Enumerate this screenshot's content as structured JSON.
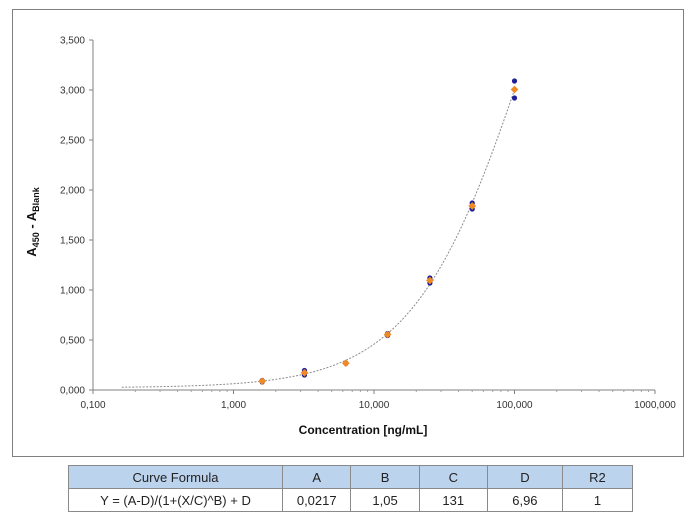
{
  "chart_data": {
    "type": "scatter",
    "xlabel": "Concentration [ng/mL]",
    "ylabel": {
      "main": "A",
      "sub1": "450",
      "mid": " - A",
      "sub2": "Blank"
    },
    "x_scale": "log",
    "xlim": [
      0.1,
      1000
    ],
    "ylim": [
      0,
      3.5
    ],
    "x_ticks": [
      {
        "value": 0.1,
        "label": "0,100"
      },
      {
        "value": 1,
        "label": "1,000"
      },
      {
        "value": 10,
        "label": "10,000"
      },
      {
        "value": 100,
        "label": "100,000"
      },
      {
        "value": 1000,
        "label": "1000,000"
      }
    ],
    "y_ticks": [
      {
        "value": 0,
        "label": "0,000"
      },
      {
        "value": 0.5,
        "label": "0,500"
      },
      {
        "value": 1.0,
        "label": "1,000"
      },
      {
        "value": 1.5,
        "label": "1,500"
      },
      {
        "value": 2.0,
        "label": "2,000"
      },
      {
        "value": 2.5,
        "label": "2,500"
      },
      {
        "value": 3.0,
        "label": "3,000"
      },
      {
        "value": 3.5,
        "label": "3,500"
      }
    ],
    "grid": false,
    "series": [
      {
        "marker": "circle",
        "color": "#1f1f9a",
        "points": [
          {
            "x": 1.6,
            "y": 0.095
          },
          {
            "x": 1.6,
            "y": 0.08
          },
          {
            "x": 3.2,
            "y": 0.195
          },
          {
            "x": 3.2,
            "y": 0.15
          },
          {
            "x": 6.3,
            "y": 0.27
          },
          {
            "x": 6.3,
            "y": 0.265
          },
          {
            "x": 12.5,
            "y": 0.565
          },
          {
            "x": 12.5,
            "y": 0.545
          },
          {
            "x": 25,
            "y": 1.12
          },
          {
            "x": 25,
            "y": 1.07
          },
          {
            "x": 50,
            "y": 1.87
          },
          {
            "x": 50,
            "y": 1.81
          },
          {
            "x": 100,
            "y": 3.09
          },
          {
            "x": 100,
            "y": 2.92
          }
        ]
      },
      {
        "marker": "diamond",
        "color": "#f08a24",
        "points": [
          {
            "x": 1.6,
            "y": 0.088
          },
          {
            "x": 3.2,
            "y": 0.172
          },
          {
            "x": 6.3,
            "y": 0.268
          },
          {
            "x": 12.5,
            "y": 0.555
          },
          {
            "x": 25,
            "y": 1.095
          },
          {
            "x": 50,
            "y": 1.84
          },
          {
            "x": 100,
            "y": 3.005
          }
        ]
      }
    ],
    "fit": {
      "type": "4pl",
      "A": 0.0217,
      "B": 1.05,
      "C": 131,
      "D": 6.96,
      "x_range": [
        0.16,
        100
      ],
      "color": "#8c8c8c"
    }
  },
  "table": {
    "headers": [
      "Curve Formula",
      "A",
      "B",
      "C",
      "D",
      "R2"
    ],
    "values": [
      "Y = (A-D)/(1+(X/C)^B) + D",
      "0,0217",
      "1,05",
      "131",
      "6,96",
      "1"
    ]
  }
}
